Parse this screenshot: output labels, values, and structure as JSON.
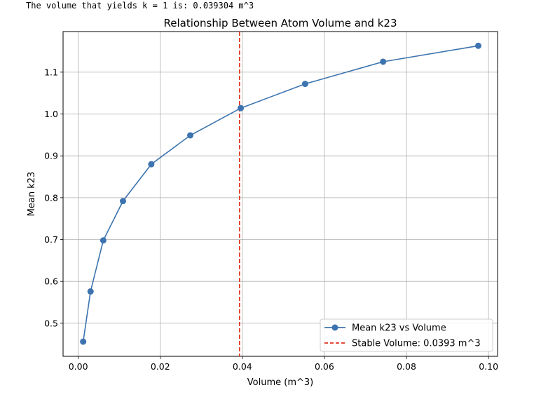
{
  "console": {
    "output_line": "The volume that yields k = 1 is: 0.039304 m^3"
  },
  "chart_data": {
    "type": "line",
    "title": "Relationship Between Atom Volume and k23",
    "xlabel": "Volume (m^3)",
    "ylabel": "Mean k23",
    "xlim": [
      -0.0037,
      0.1022
    ],
    "ylim": [
      0.421,
      1.197
    ],
    "xticks": [
      0.0,
      0.02,
      0.04,
      0.06,
      0.08,
      0.1
    ],
    "xtick_labels": [
      "0.00",
      "0.02",
      "0.04",
      "0.06",
      "0.08",
      "0.10"
    ],
    "yticks": [
      0.5,
      0.6,
      0.7,
      0.8,
      0.9,
      1.0,
      1.1
    ],
    "ytick_labels": [
      "0.5",
      "0.6",
      "0.7",
      "0.8",
      "0.9",
      "1.0",
      "1.1"
    ],
    "grid": true,
    "legend_position": "lower-right",
    "series": [
      {
        "name": "Mean k23 vs Volume",
        "color": "#3d74b0",
        "marker": "circle",
        "x": [
          0.0012,
          0.003,
          0.0061,
          0.0109,
          0.0178,
          0.0273,
          0.0396,
          0.0553,
          0.0743,
          0.0975
        ],
        "y": [
          0.456,
          0.576,
          0.698,
          0.792,
          0.88,
          0.949,
          1.014,
          1.072,
          1.125,
          1.163
        ]
      }
    ],
    "reference_lines": [
      {
        "name": "Stable Volume: 0.0393 m^3",
        "orientation": "vertical",
        "x": 0.0393,
        "color": "#e0301e",
        "style": "dashed"
      }
    ]
  }
}
